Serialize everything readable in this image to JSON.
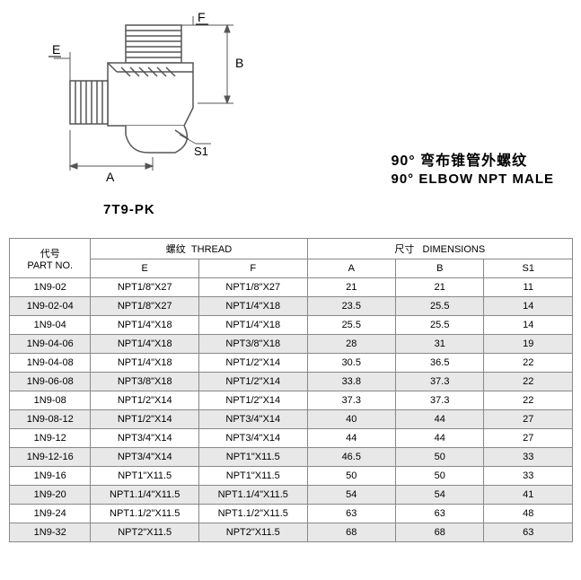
{
  "diagram": {
    "labels": {
      "E": "E",
      "F": "F",
      "A": "A",
      "B": "B",
      "S1": "S1"
    },
    "stroke": "#555555",
    "fill_body": "#dddddd",
    "fill_hatch": "#cccccc"
  },
  "part_code": "7T9-PK",
  "title": {
    "cn": "90° 弯布锥管外螺纹",
    "en": "90°  ELBOW NPT MALE"
  },
  "table": {
    "headers": {
      "partno_cn": "代号",
      "partno_en": "PART NO.",
      "thread_cn": "螺纹",
      "thread_en": "THREAD",
      "dims_cn": "尺寸",
      "dims_en": "DIMENSIONS",
      "E": "E",
      "F": "F",
      "A": "A",
      "B": "B",
      "S1": "S1"
    },
    "columns": [
      "partno",
      "E",
      "F",
      "A",
      "B",
      "S1"
    ],
    "rows": [
      {
        "partno": "1N9-02",
        "E": "NPT1/8\"X27",
        "F": "NPT1/8\"X27",
        "A": "21",
        "B": "21",
        "S1": "11"
      },
      {
        "partno": "1N9-02-04",
        "E": "NPT1/8\"X27",
        "F": "NPT1/4\"X18",
        "A": "23.5",
        "B": "25.5",
        "S1": "14"
      },
      {
        "partno": "1N9-04",
        "E": "NPT1/4\"X18",
        "F": "NPT1/4\"X18",
        "A": "25.5",
        "B": "25.5",
        "S1": "14"
      },
      {
        "partno": "1N9-04-06",
        "E": "NPT1/4\"X18",
        "F": "NPT3/8\"X18",
        "A": "28",
        "B": "31",
        "S1": "19"
      },
      {
        "partno": "1N9-04-08",
        "E": "NPT1/4\"X18",
        "F": "NPT1/2\"X14",
        "A": "30.5",
        "B": "36.5",
        "S1": "22"
      },
      {
        "partno": "1N9-06-08",
        "E": "NPT3/8\"X18",
        "F": "NPT1/2\"X14",
        "A": "33.8",
        "B": "37.3",
        "S1": "22"
      },
      {
        "partno": "1N9-08",
        "E": "NPT1/2\"X14",
        "F": "NPT1/2\"X14",
        "A": "37.3",
        "B": "37.3",
        "S1": "22"
      },
      {
        "partno": "1N9-08-12",
        "E": "NPT1/2\"X14",
        "F": "NPT3/4\"X14",
        "A": "40",
        "B": "44",
        "S1": "27"
      },
      {
        "partno": "1N9-12",
        "E": "NPT3/4\"X14",
        "F": "NPT3/4\"X14",
        "A": "44",
        "B": "44",
        "S1": "27"
      },
      {
        "partno": "1N9-12-16",
        "E": "NPT3/4\"X14",
        "F": "NPT1\"X11.5",
        "A": "46.5",
        "B": "50",
        "S1": "33"
      },
      {
        "partno": "1N9-16",
        "E": "NPT1\"X11.5",
        "F": "NPT1\"X11.5",
        "A": "50",
        "B": "50",
        "S1": "33"
      },
      {
        "partno": "1N9-20",
        "E": "NPT1.1/4\"X11.5",
        "F": "NPT1.1/4\"X11.5",
        "A": "54",
        "B": "54",
        "S1": "41"
      },
      {
        "partno": "1N9-24",
        "E": "NPT1.1/2\"X11.5",
        "F": "NPT1.1/2\"X11.5",
        "A": "63",
        "B": "63",
        "S1": "48"
      },
      {
        "partno": "1N9-32",
        "E": "NPT2\"X11.5",
        "F": "NPT2\"X11.5",
        "A": "68",
        "B": "68",
        "S1": "63"
      }
    ],
    "alt_row_bg": "#e8e8e8",
    "border_color": "#888888",
    "font_size": 11
  }
}
